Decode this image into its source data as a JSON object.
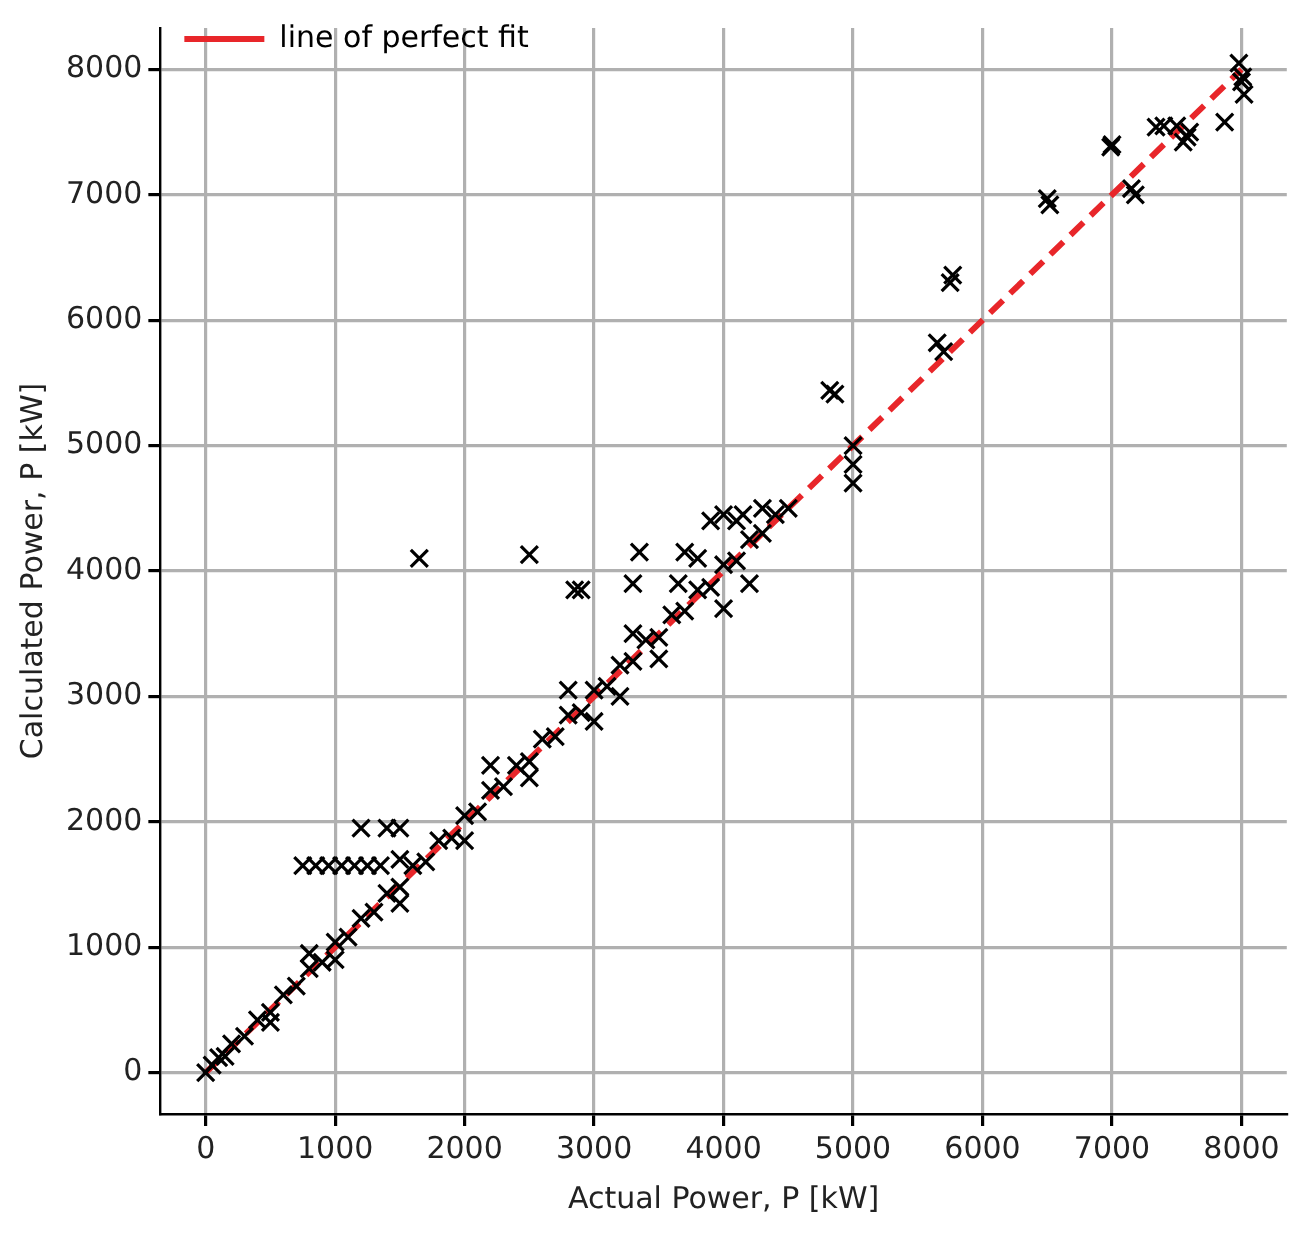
{
  "chart_data": {
    "type": "scatter",
    "xlabel": "Actual Power, P [kW]",
    "ylabel": "Calculated Power, P [kW]",
    "xlim": [
      -350,
      8350
    ],
    "ylim": [
      -330,
      8330
    ],
    "xticks": [
      0,
      1000,
      2000,
      3000,
      4000,
      5000,
      6000,
      7000,
      8000
    ],
    "yticks": [
      0,
      1000,
      2000,
      3000,
      4000,
      5000,
      6000,
      7000,
      8000
    ],
    "grid": true,
    "legend": "top left",
    "series": [
      {
        "color": "#000000",
        "marker": "cross",
        "x": [
          0,
          50,
          100,
          150,
          200,
          300,
          400,
          500,
          600,
          700,
          800,
          900,
          1000,
          1100,
          1200,
          1300,
          1400,
          1500,
          1600,
          1700,
          1800,
          1900,
          2000,
          2100,
          2200,
          2300,
          2400,
          2500,
          2600,
          2700,
          2800,
          2900,
          3000,
          3100,
          3200,
          3300,
          3400,
          3500,
          3600,
          3700,
          3800,
          3900,
          4000,
          4100,
          4200,
          4300,
          4400,
          4500,
          500,
          1000,
          1500,
          2000,
          2500,
          3000,
          3500,
          4000,
          3200,
          4200,
          800,
          1500,
          2200,
          2800,
          3300,
          3800,
          4100,
          4300,
          1650,
          2500,
          2850,
          2900,
          3350,
          3300,
          3700,
          3650,
          3900,
          4000,
          4150,
          750,
          850,
          950,
          1050,
          1150,
          1250,
          1350,
          1200,
          1400,
          1500,
          4860,
          4820,
          5000,
          5000,
          5000,
          5650,
          5770,
          5750,
          5700,
          6500,
          6520,
          6990,
          7000,
          7180,
          7150,
          7340,
          7400,
          7500,
          7580,
          7600,
          7550,
          7870,
          8010,
          8000,
          8020,
          7980
        ],
        "values": [
          0,
          60,
          120,
          130,
          230,
          290,
          420,
          480,
          620,
          690,
          830,
          880,
          1040,
          1080,
          1230,
          1280,
          1430,
          1480,
          1650,
          1680,
          1850,
          1870,
          2050,
          2080,
          2250,
          2280,
          2450,
          2480,
          2660,
          2680,
          2850,
          2870,
          3050,
          3080,
          3250,
          3280,
          3450,
          3470,
          3650,
          3680,
          3850,
          3870,
          4050,
          4080,
          4250,
          4300,
          4450,
          4500,
          400,
          900,
          1350,
          1850,
          2350,
          2800,
          3300,
          3700,
          3000,
          3900,
          950,
          1700,
          2450,
          3050,
          3500,
          4100,
          4400,
          4500,
          4100,
          4130,
          3850,
          3850,
          4150,
          3900,
          4150,
          3900,
          4400,
          4450,
          4450,
          1650,
          1650,
          1650,
          1650,
          1650,
          1650,
          1650,
          1950,
          1950,
          1950,
          5410,
          5440,
          5000,
          4850,
          4700,
          5820,
          6360,
          6300,
          5750,
          6970,
          6920,
          7380,
          7400,
          7000,
          7050,
          7540,
          7550,
          7550,
          7460,
          7500,
          7420,
          7580,
          7940,
          7900,
          7800,
          8050
        ]
      },
      {
        "type": "line",
        "name": "line of perfect fit",
        "color": "#e8262a",
        "line_style": "dashed",
        "marker": "none",
        "x": [
          0,
          8000
        ],
        "values": [
          0,
          8000
        ]
      }
    ]
  }
}
